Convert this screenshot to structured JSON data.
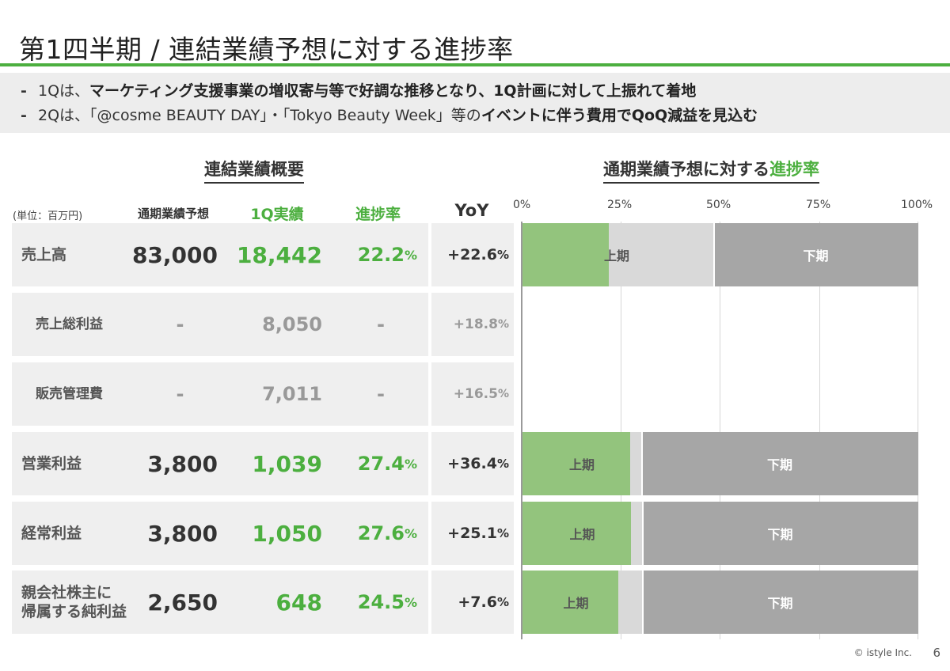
{
  "title": "第1四半期 / 連結業績予想に対する進捗率",
  "bullets": [
    {
      "prefix": "1Qは、",
      "bold": "マーケティング支援事業の増収寄与等で好調な推移となり、1Q計画に対して上振れて着地",
      "middle": "",
      "bold2": ""
    },
    {
      "prefix": "2Qは、「@cosme BEAUTY DAY」・「Tokyo Beauty Week」等の",
      "bold": "イベントに伴う費用でQoQ減益を見込む",
      "middle": "",
      "bold2": ""
    }
  ],
  "bullet_dash": "-",
  "table": {
    "title": "連結業績概要",
    "unit": "(単位：百万円)",
    "headers": {
      "plan": "通期業績予想",
      "actual": "1Q実績",
      "progress": "進捗率",
      "yoy": "YoY"
    },
    "rows": [
      {
        "label": "売上高",
        "plan": "83,000",
        "actual": "18,442",
        "progress": "22.2",
        "yoy": "+22.6",
        "sub": false
      },
      {
        "label": "売上総利益",
        "plan": "-",
        "actual": "8,050",
        "progress": "-",
        "yoy": "+18.8",
        "sub": true
      },
      {
        "label": "販売管理費",
        "plan": "-",
        "actual": "7,011",
        "progress": "-",
        "yoy": "+16.5",
        "sub": true
      },
      {
        "label": "営業利益",
        "plan": "3,800",
        "actual": "1,039",
        "progress": "27.4",
        "yoy": "+36.4",
        "sub": false
      },
      {
        "label": "経常利益",
        "plan": "3,800",
        "actual": "1,050",
        "progress": "27.6",
        "yoy": "+25.1",
        "sub": false
      },
      {
        "label": "親会社株主に\n帰属する純利益",
        "plan": "2,650",
        "actual": "648",
        "progress": "24.5",
        "yoy": "+7.6",
        "sub": false
      }
    ],
    "pct_sign": "%"
  },
  "chart_data": {
    "type": "bar",
    "title_prefix": "通期業績予想に対する",
    "title_highlight": "進捗率",
    "x_ticks": [
      "0%",
      "25%",
      "50%",
      "75%",
      "100%"
    ],
    "xlim": [
      0,
      100
    ],
    "series_labels": {
      "first": "上期",
      "second": "下期"
    },
    "rows": [
      {
        "category": "売上高",
        "progress": 22.2,
        "first_half_end": 48.5
      },
      {
        "category": "売上総利益",
        "progress": null,
        "first_half_end": null
      },
      {
        "category": "販売管理費",
        "progress": null,
        "first_half_end": null
      },
      {
        "category": "営業利益",
        "progress": 27.4,
        "first_half_end": 30.2
      },
      {
        "category": "経常利益",
        "progress": 27.6,
        "first_half_end": 30.4
      },
      {
        "category": "親会社株主に帰属する純利益",
        "progress": 24.5,
        "first_half_end": 30.4
      }
    ],
    "colors": {
      "progress": "#93c47d",
      "first_half": "#d9d9d9",
      "second_half": "#a6a6a6",
      "accent": "#4caf3f"
    }
  },
  "footer": {
    "copyright": "© istyle Inc.",
    "page": "6"
  }
}
